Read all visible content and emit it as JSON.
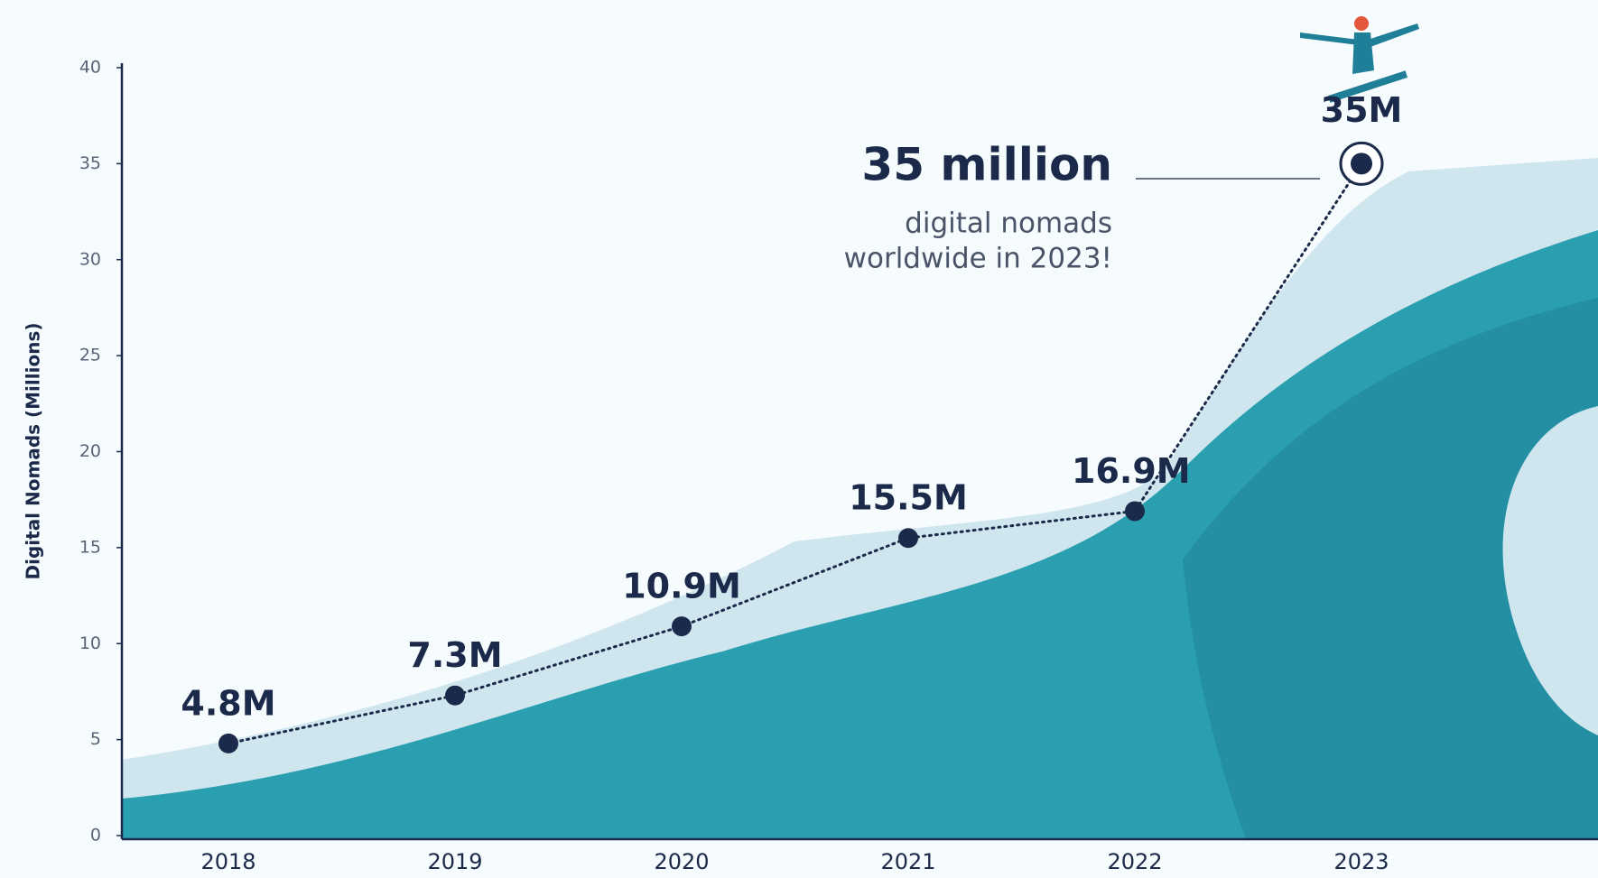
{
  "chart_data": {
    "type": "line",
    "ylabel": "Digital Nomads (Millions)",
    "categories": [
      "2018",
      "2019",
      "2020",
      "2021",
      "2022",
      "2023"
    ],
    "values": [
      4.8,
      7.3,
      10.9,
      15.5,
      16.9,
      35
    ],
    "value_labels": [
      "4.8M",
      "7.3M",
      "10.9M",
      "15.5M",
      "16.9M",
      "35M"
    ],
    "color": "#1b2a4a",
    "ylim": [
      0,
      40
    ],
    "yticks": [
      0,
      5,
      10,
      15,
      20,
      25,
      30,
      35,
      40
    ],
    "annotation": {
      "headline": "35 million",
      "text": [
        "digital nomads",
        "worldwide in 2023!"
      ]
    }
  }
}
